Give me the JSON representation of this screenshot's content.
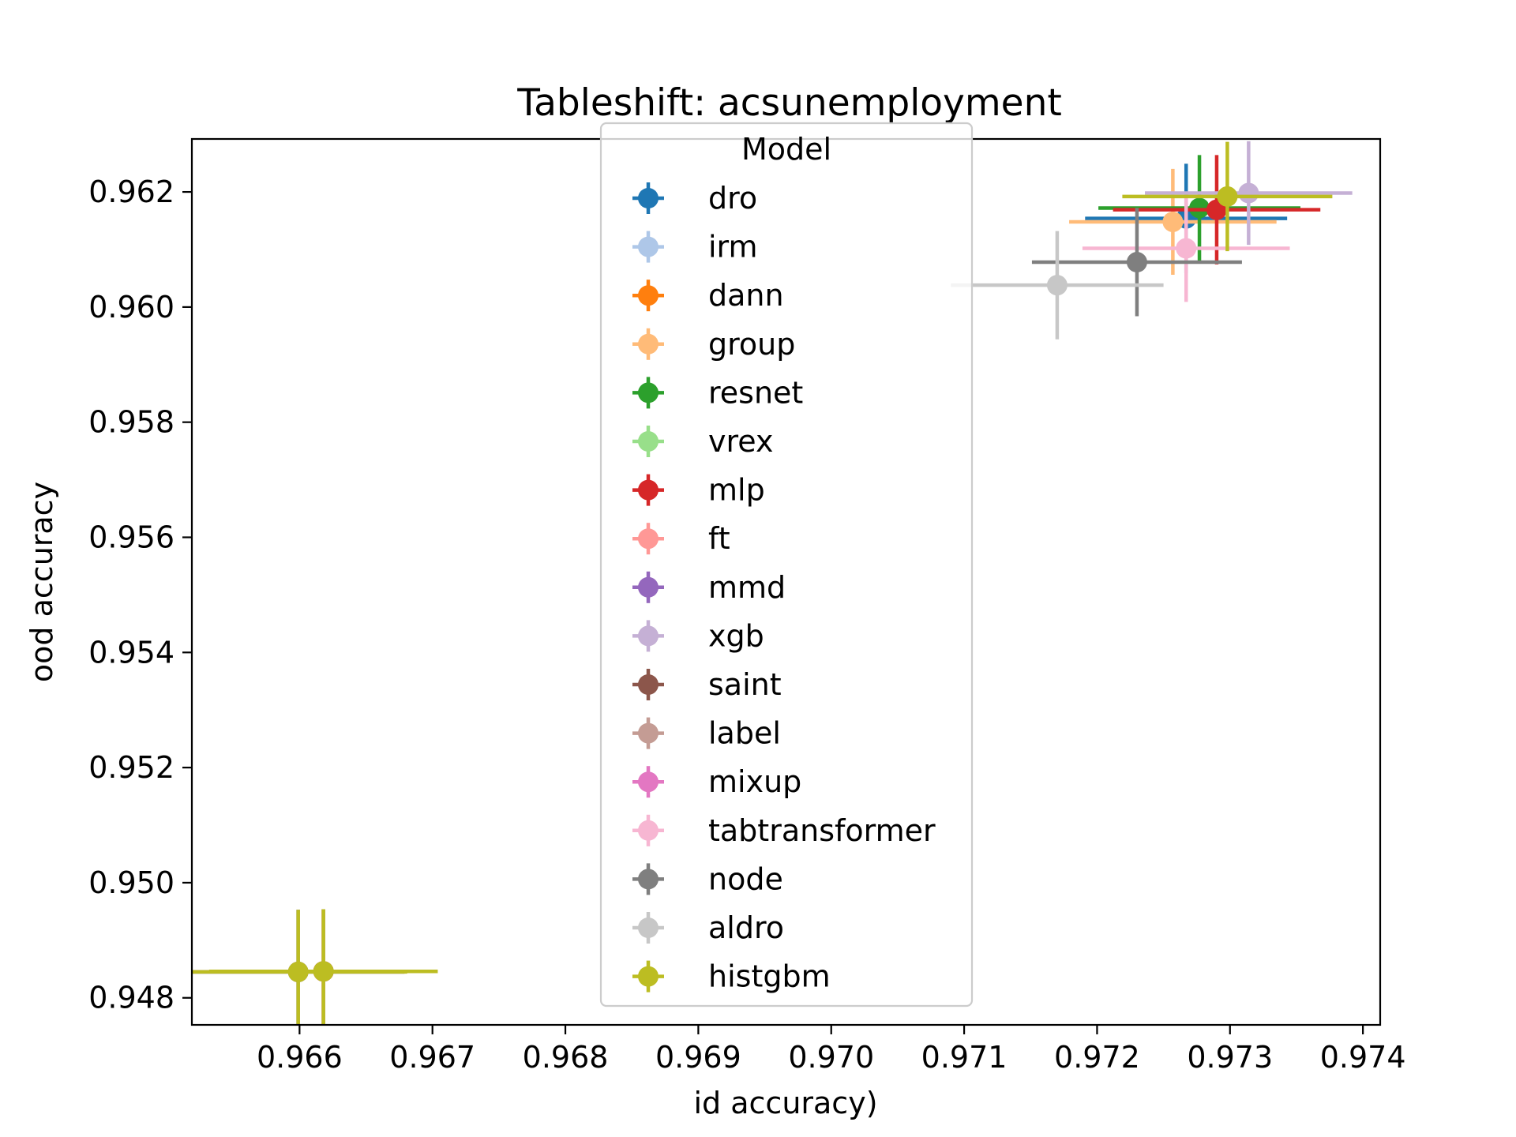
{
  "chart_data": {
    "type": "scatter",
    "title": "Tableshift: acsunemployment",
    "xlabel": "id accuracy)",
    "ylabel": "ood accuracy",
    "xlim": [
      0.96519,
      0.97413
    ],
    "ylim": [
      0.94753,
      0.96292
    ],
    "x_ticks": [
      "0.966",
      "0.967",
      "0.968",
      "0.969",
      "0.970",
      "0.971",
      "0.972",
      "0.973",
      "0.974"
    ],
    "x_tick_values": [
      0.966,
      0.967,
      0.968,
      0.969,
      0.97,
      0.971,
      0.972,
      0.973,
      0.974
    ],
    "y_ticks": [
      "0.948",
      "0.950",
      "0.952",
      "0.954",
      "0.956",
      "0.958",
      "0.960",
      "0.962"
    ],
    "y_tick_values": [
      0.948,
      0.95,
      0.952,
      0.954,
      0.956,
      0.958,
      0.96,
      0.962
    ],
    "grid": false,
    "legend": {
      "title": "Model",
      "placement": "upper center"
    },
    "series": [
      {
        "name": "dro",
        "color": "#1f77b4",
        "x": 0.97267,
        "y": 0.96154,
        "xerr": [
          0.00076,
          0.00076
        ],
        "yerr": [
          0.00095,
          0.00095
        ]
      },
      {
        "name": "irm",
        "color": "#aec7e8",
        "x": 0.96599,
        "y": 0.94845,
        "xerr": [
          0.0008,
          0.0008
        ],
        "yerr": [
          0.00108,
          0.00108
        ]
      },
      {
        "name": "dann",
        "color": "#ff7f0e",
        "x": 0.96618,
        "y": 0.94846,
        "xerr": [
          0.0008,
          0.0008
        ],
        "yerr": [
          0.00108,
          0.00108
        ]
      },
      {
        "name": "group",
        "color": "#ffbb78",
        "x": 0.97257,
        "y": 0.96148,
        "xerr": [
          0.00078,
          0.00078
        ],
        "yerr": [
          0.00092,
          0.00092
        ]
      },
      {
        "name": "resnet",
        "color": "#2ca02c",
        "x": 0.97277,
        "y": 0.96172,
        "xerr": [
          0.00076,
          0.00076
        ],
        "yerr": [
          0.00092,
          0.00092
        ]
      },
      {
        "name": "vrex",
        "color": "#98df8a",
        "x": 0.96599,
        "y": 0.94845,
        "xerr": [
          0.0008,
          0.0008
        ],
        "yerr": [
          0.00108,
          0.00108
        ]
      },
      {
        "name": "mlp",
        "color": "#d62728",
        "x": 0.9729,
        "y": 0.96169,
        "xerr": [
          0.00078,
          0.00078
        ],
        "yerr": [
          0.00095,
          0.00095
        ]
      },
      {
        "name": "ft",
        "color": "#ff9896",
        "x": 0.96618,
        "y": 0.94846,
        "xerr": [
          0.0008,
          0.0008
        ],
        "yerr": [
          0.00108,
          0.00108
        ]
      },
      {
        "name": "mmd",
        "color": "#9467bd",
        "x": 0.96599,
        "y": 0.94845,
        "xerr": [
          0.0008,
          0.0008
        ],
        "yerr": [
          0.00108,
          0.00108
        ]
      },
      {
        "name": "xgb",
        "color": "#c5b0d5",
        "x": 0.97314,
        "y": 0.96198,
        "xerr": [
          0.00078,
          0.00078
        ],
        "yerr": [
          0.0009,
          0.0009
        ]
      },
      {
        "name": "saint",
        "color": "#8c564b",
        "x": 0.96618,
        "y": 0.94846,
        "xerr": [
          0.0008,
          0.0008
        ],
        "yerr": [
          0.00108,
          0.00108
        ]
      },
      {
        "name": "label",
        "color": "#c49c94",
        "x": 0.96599,
        "y": 0.94845,
        "xerr": [
          0.0008,
          0.0008
        ],
        "yerr": [
          0.00108,
          0.00108
        ]
      },
      {
        "name": "mixup",
        "color": "#e377c2",
        "x": 0.96618,
        "y": 0.94846,
        "xerr": [
          0.0008,
          0.0008
        ],
        "yerr": [
          0.00108,
          0.00108
        ]
      },
      {
        "name": "tabtransformer",
        "color": "#f7b6d2",
        "x": 0.97267,
        "y": 0.96102,
        "xerr": [
          0.00078,
          0.00078
        ],
        "yerr": [
          0.00093,
          0.00093
        ]
      },
      {
        "name": "node",
        "color": "#7f7f7f",
        "x": 0.9723,
        "y": 0.96078,
        "xerr": [
          0.00079,
          0.00079
        ],
        "yerr": [
          0.00094,
          0.00094
        ]
      },
      {
        "name": "aldro",
        "color": "#c7c7c7",
        "x": 0.9717,
        "y": 0.96038,
        "xerr": [
          0.0008,
          0.0008
        ],
        "yerr": [
          0.00094,
          0.00094
        ]
      },
      {
        "name": "histgbm",
        "color": "#bcbd22",
        "x": 0.97298,
        "y": 0.96192,
        "xerr": [
          0.00079,
          0.00079
        ],
        "yerr": [
          0.00095,
          0.00095
        ]
      },
      {
        "name": "histgbm",
        "color": "#bcbd22",
        "x": 0.96599,
        "y": 0.94845,
        "xerr": [
          0.00082,
          0.00082
        ],
        "yerr": [
          0.00108,
          0.00108
        ],
        "legend": false
      },
      {
        "name": "histgbm",
        "color": "#bcbd22",
        "x": 0.96618,
        "y": 0.94846,
        "xerr": [
          0.00086,
          0.00086
        ],
        "yerr": [
          0.00108,
          0.00108
        ],
        "legend": false
      }
    ]
  }
}
